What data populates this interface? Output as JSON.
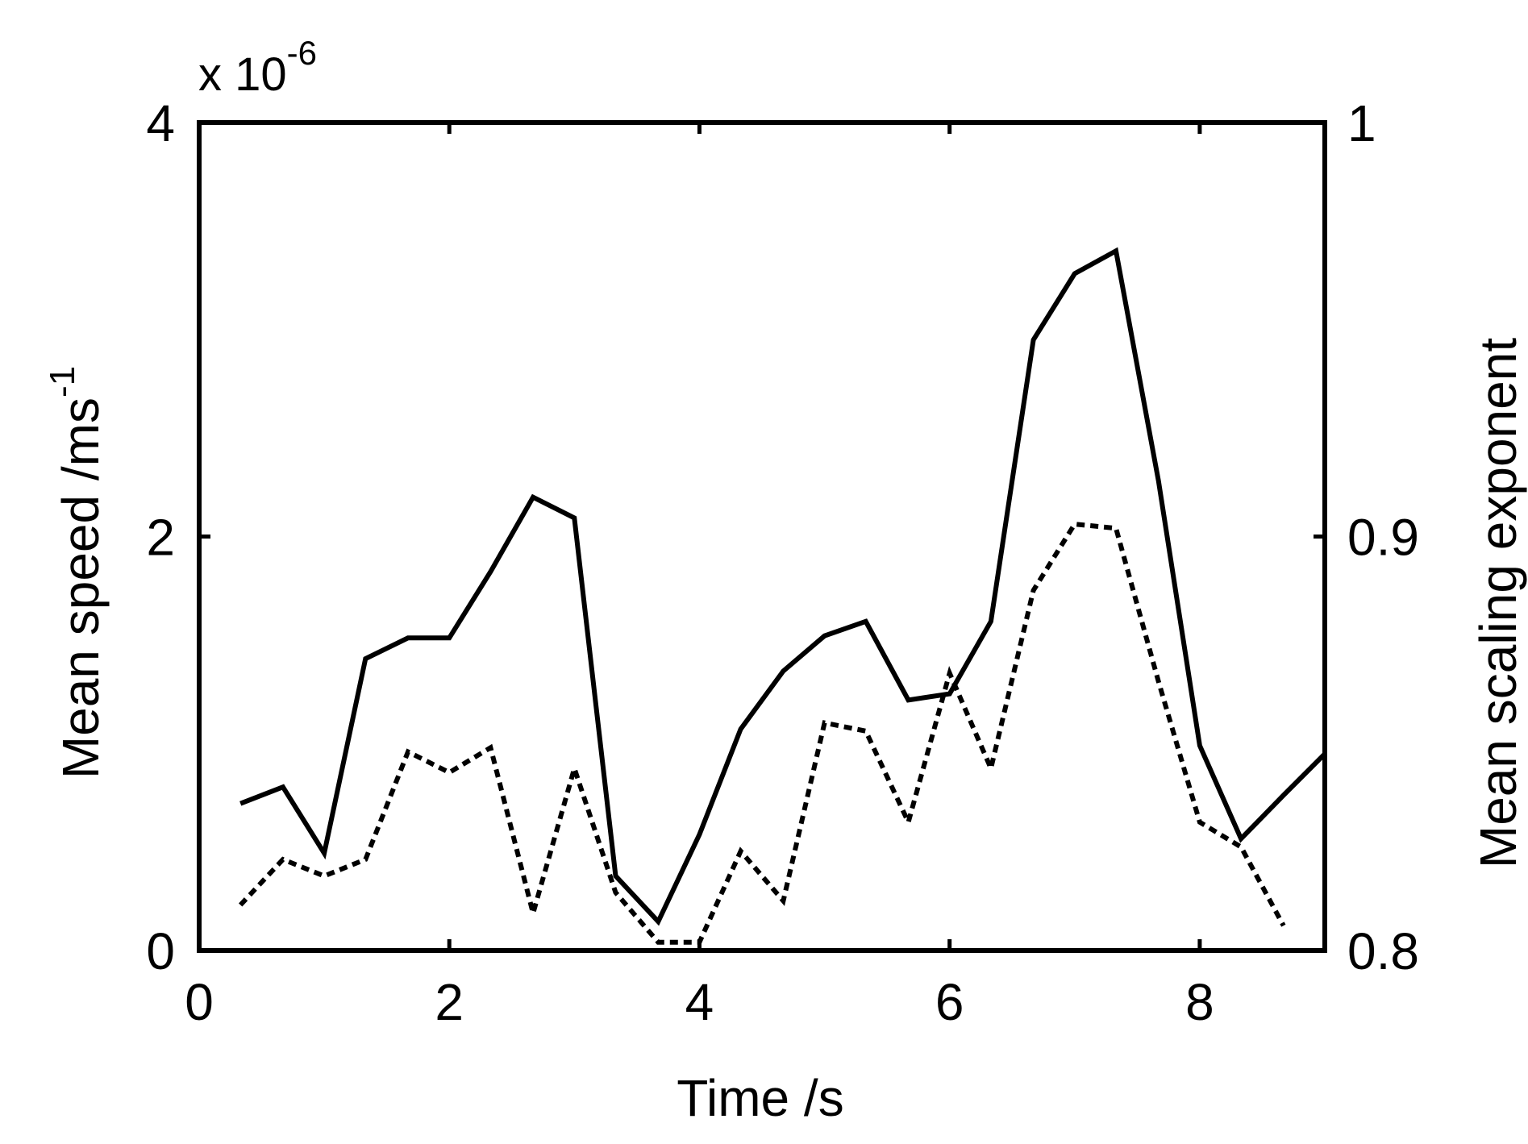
{
  "chart_data": {
    "type": "line",
    "title": "",
    "xlabel": "Time /s",
    "ylabel_main": "Mean speed /ms",
    "ylabel_sup": "-1",
    "ylabel_right": "Mean scaling exponent",
    "y_multiplier_base": "x 10",
    "y_multiplier_exp": "-6",
    "xlim": [
      0,
      9
    ],
    "ylim_left": [
      0,
      4
    ],
    "ylim_right": [
      0.8,
      1.0
    ],
    "x_ticks": [
      {
        "value": 0,
        "label": "0"
      },
      {
        "value": 2,
        "label": "2"
      },
      {
        "value": 4,
        "label": "4"
      },
      {
        "value": 6,
        "label": "6"
      },
      {
        "value": 8,
        "label": "8"
      }
    ],
    "y_ticks_left": [
      {
        "value": 0,
        "label": "0"
      },
      {
        "value": 2,
        "label": "2"
      },
      {
        "value": 4,
        "label": "4"
      }
    ],
    "y_ticks_right": [
      {
        "value": 0.8,
        "label": "0.8"
      },
      {
        "value": 0.9,
        "label": "0.9"
      },
      {
        "value": 1.0,
        "label": "1"
      }
    ],
    "grid": false,
    "series": [
      {
        "axis": "left",
        "style": "solid",
        "color": "#000000",
        "points": [
          [
            0.33,
            0.71
          ],
          [
            0.67,
            0.79
          ],
          [
            1.0,
            0.47
          ],
          [
            1.33,
            1.41
          ],
          [
            1.67,
            1.51
          ],
          [
            2.0,
            1.51
          ],
          [
            2.33,
            1.83
          ],
          [
            2.67,
            2.19
          ],
          [
            3.0,
            2.09
          ],
          [
            3.33,
            0.36
          ],
          [
            3.67,
            0.14
          ],
          [
            4.0,
            0.56
          ],
          [
            4.33,
            1.07
          ],
          [
            4.67,
            1.35
          ],
          [
            5.0,
            1.52
          ],
          [
            5.33,
            1.59
          ],
          [
            5.67,
            1.21
          ],
          [
            6.0,
            1.24
          ],
          [
            6.33,
            1.59
          ],
          [
            6.67,
            2.95
          ],
          [
            7.0,
            3.27
          ],
          [
            7.33,
            3.38
          ],
          [
            7.67,
            2.27
          ],
          [
            8.0,
            0.99
          ],
          [
            8.33,
            0.54
          ],
          [
            8.67,
            0.75
          ],
          [
            9.0,
            0.95
          ]
        ]
      },
      {
        "axis": "right",
        "style": "dotted",
        "color": "#000000",
        "points": [
          [
            0.33,
            0.811
          ],
          [
            0.67,
            0.822
          ],
          [
            1.0,
            0.818
          ],
          [
            1.33,
            0.822
          ],
          [
            1.67,
            0.848
          ],
          [
            2.0,
            0.843
          ],
          [
            2.33,
            0.849
          ],
          [
            2.67,
            0.809
          ],
          [
            3.0,
            0.844
          ],
          [
            3.33,
            0.814
          ],
          [
            3.67,
            0.802
          ],
          [
            4.0,
            0.802
          ],
          [
            4.33,
            0.824
          ],
          [
            4.67,
            0.812
          ],
          [
            5.0,
            0.855
          ],
          [
            5.33,
            0.853
          ],
          [
            5.67,
            0.831
          ],
          [
            6.0,
            0.867
          ],
          [
            6.33,
            0.844
          ],
          [
            6.67,
            0.887
          ],
          [
            7.0,
            0.903
          ],
          [
            7.33,
            0.902
          ],
          [
            7.67,
            0.865
          ],
          [
            8.0,
            0.831
          ],
          [
            8.33,
            0.825
          ],
          [
            8.67,
            0.806
          ]
        ]
      }
    ]
  }
}
